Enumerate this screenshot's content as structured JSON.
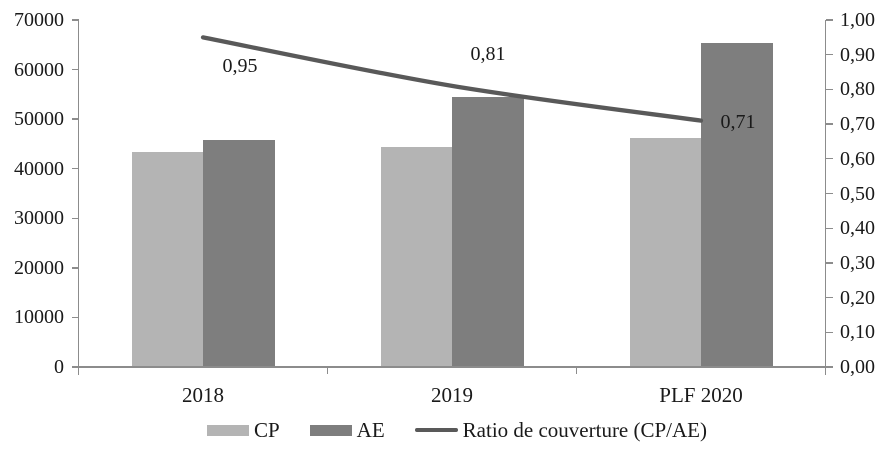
{
  "chart_data": {
    "type": "bar",
    "title": "",
    "categories": [
      "2018",
      "2019",
      "PLF 2020"
    ],
    "series": [
      {
        "name": "CP",
        "type": "bar",
        "axis": "left",
        "color": "#b4b4b4",
        "values": [
          43300,
          44400,
          46100
        ]
      },
      {
        "name": "AE",
        "type": "bar",
        "axis": "left",
        "color": "#7e7e7e",
        "values": [
          45800,
          54500,
          65400
        ]
      },
      {
        "name": "Ratio de couverture (CP/AE)",
        "type": "line",
        "axis": "right",
        "color": "#595959",
        "values": [
          0.95,
          0.81,
          0.71
        ],
        "point_labels": [
          "0,95",
          "0,81",
          "0,71"
        ]
      }
    ],
    "left_axis": {
      "min": 0,
      "max": 70000,
      "step": 10000,
      "tick_labels": [
        "0",
        "10000",
        "20000",
        "30000",
        "40000",
        "50000",
        "60000",
        "70000"
      ]
    },
    "right_axis": {
      "min": 0,
      "max": 1,
      "step": 0.1,
      "tick_labels": [
        "0,00",
        "0,10",
        "0,20",
        "0,30",
        "0,40",
        "0,50",
        "0,60",
        "0,70",
        "0,80",
        "0,90",
        "1,00"
      ]
    },
    "grid": false,
    "legend_position": "bottom"
  },
  "colors": {
    "axis": "#8c8c8c",
    "text": "#1a1a1a",
    "background": "#ffffff"
  }
}
